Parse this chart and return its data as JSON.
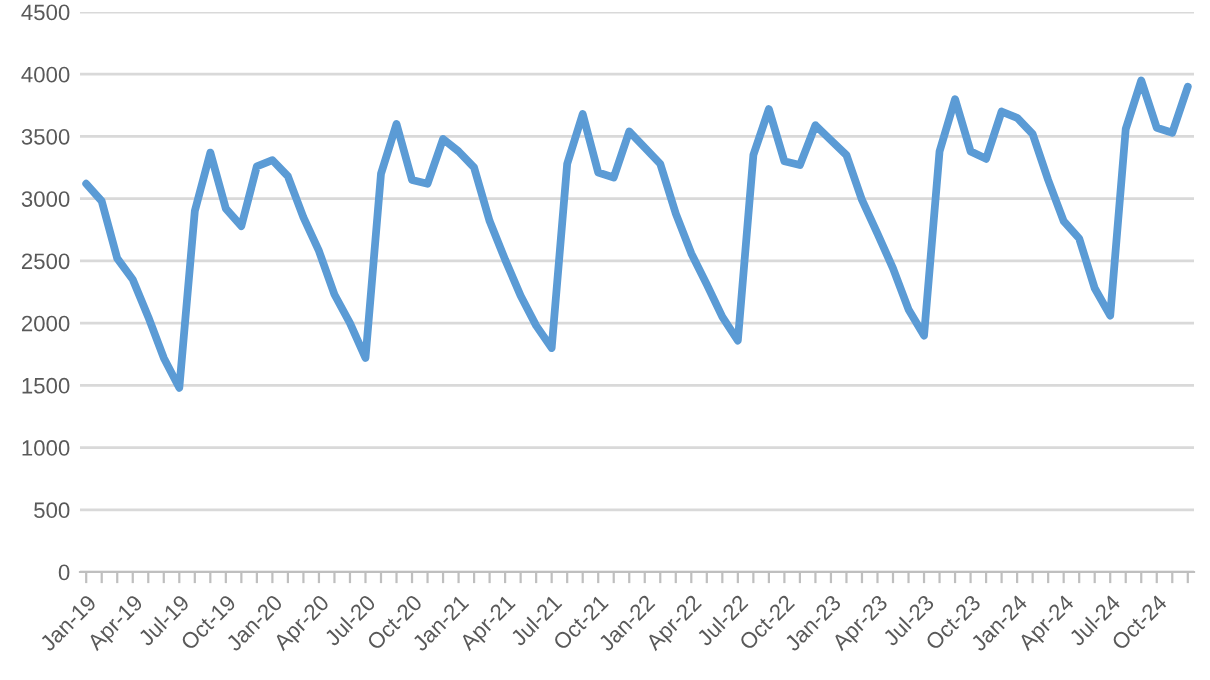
{
  "chart_data": {
    "type": "line",
    "categories": [
      "Jan-19",
      null,
      null,
      "Apr-19",
      null,
      null,
      "Jul-19",
      null,
      null,
      "Oct-19",
      null,
      null,
      "Jan-20",
      null,
      null,
      "Apr-20",
      null,
      null,
      "Jul-20",
      null,
      null,
      "Oct-20",
      null,
      null,
      "Jan-21",
      null,
      null,
      "Apr-21",
      null,
      null,
      "Jul-21",
      null,
      null,
      "Oct-21",
      null,
      null,
      "Jan-22",
      null,
      null,
      "Apr-22",
      null,
      null,
      "Jul-22",
      null,
      null,
      "Oct-22",
      null,
      null,
      "Jan-23",
      null,
      null,
      "Apr-23",
      null,
      null,
      "Jul-23",
      null,
      null,
      "Oct-23",
      null,
      null,
      "Jan-24",
      null,
      null,
      "Apr-24",
      null,
      null,
      "Jul-24",
      null,
      null,
      "Oct-24",
      null,
      null
    ],
    "series": [
      {
        "color": "#5b9bd5",
        "values": [
          3120,
          2980,
          2520,
          2350,
          2050,
          1720,
          1480,
          2900,
          3370,
          2920,
          2780,
          3260,
          3310,
          3180,
          2850,
          2580,
          2230,
          2000,
          1720,
          3200,
          3600,
          3150,
          3120,
          3480,
          3380,
          3250,
          2820,
          2510,
          2220,
          1980,
          1800,
          3280,
          3680,
          3210,
          3170,
          3540,
          3410,
          3280,
          2880,
          2560,
          2310,
          2050,
          1860,
          3350,
          3720,
          3300,
          3270,
          3590,
          3470,
          3350,
          2990,
          2720,
          2440,
          2110,
          1900,
          3380,
          3800,
          3380,
          3320,
          3700,
          3650,
          3520,
          3150,
          2820,
          2680,
          2280,
          2060,
          3560,
          3950,
          3570,
          3530,
          3900
        ]
      }
    ],
    "ylim": [
      0,
      4500
    ],
    "yticks": [
      0,
      500,
      1000,
      1500,
      2000,
      2500,
      3000,
      3500,
      4000,
      4500
    ],
    "grid": "y",
    "legend": false,
    "marker": "none",
    "line_style": "solid"
  }
}
